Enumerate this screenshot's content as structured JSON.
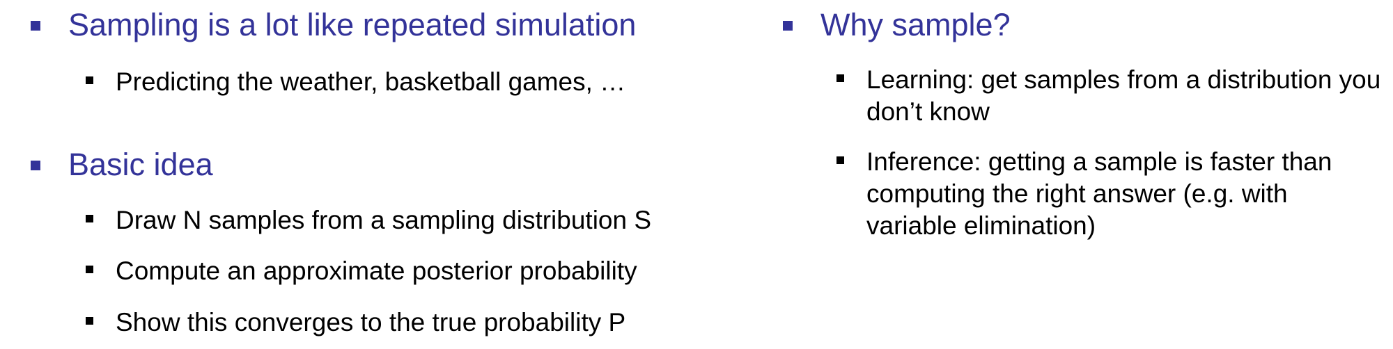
{
  "left_column": {
    "sections": [
      {
        "heading": "Sampling is a lot like repeated simulation",
        "items": [
          "Predicting the weather, basketball games, …"
        ]
      },
      {
        "heading": "Basic idea",
        "items": [
          "Draw N samples from a sampling distribution S",
          "Compute an approximate posterior probability",
          "Show this converges to the true probability P"
        ]
      }
    ]
  },
  "right_column": {
    "sections": [
      {
        "heading": "Why sample?",
        "items": [
          "Learning: get samples from a distribution you don’t know",
          "Inference: getting a sample is faster than computing the right answer (e.g. with variable elimination)"
        ]
      }
    ]
  },
  "colors": {
    "heading": "#333399",
    "body_text": "#000000",
    "background": "#ffffff"
  }
}
